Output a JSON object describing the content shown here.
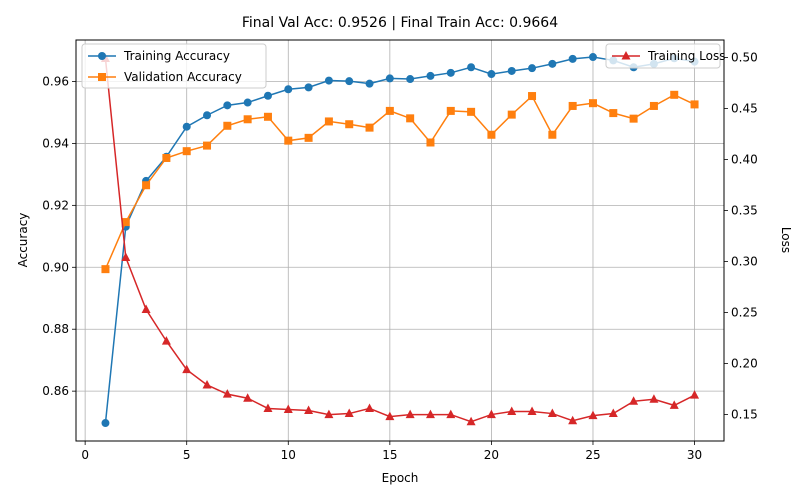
{
  "chart_data": {
    "type": "line",
    "title": "Final Val Acc: 0.9526 | Final Train Acc: 0.9664",
    "xlabel": "Epoch",
    "ylabel_left": "Accuracy",
    "ylabel_right": "Loss",
    "xlim": [
      -0.45,
      31.45
    ],
    "ylim_left": [
      0.8439,
      0.9734
    ],
    "ylim_right": [
      0.1241,
      0.5171
    ],
    "xticks": [
      0,
      5,
      10,
      15,
      20,
      25,
      30
    ],
    "yticks_left": [
      0.86,
      0.88,
      0.9,
      0.92,
      0.94,
      0.96
    ],
    "yticks_right": [
      0.15,
      0.2,
      0.25,
      0.3,
      0.35,
      0.4,
      0.45,
      0.5
    ],
    "grid": true,
    "x": [
      1,
      2,
      3,
      4,
      5,
      6,
      7,
      8,
      9,
      10,
      11,
      12,
      13,
      14,
      15,
      16,
      17,
      18,
      19,
      20,
      21,
      22,
      23,
      24,
      25,
      26,
      27,
      28,
      29,
      30
    ],
    "series": [
      {
        "name": "Training Accuracy",
        "axis": "left",
        "color": "#1f77b4",
        "marker": "circle",
        "values": [
          0.8497,
          0.9131,
          0.9279,
          0.9357,
          0.9454,
          0.9491,
          0.9523,
          0.9532,
          0.9554,
          0.9575,
          0.9581,
          0.9603,
          0.9601,
          0.9593,
          0.961,
          0.9608,
          0.9618,
          0.9628,
          0.9646,
          0.9624,
          0.9634,
          0.9643,
          0.9657,
          0.9673,
          0.9679,
          0.9668,
          0.9646,
          0.9657,
          0.9675,
          0.9664
        ]
      },
      {
        "name": "Validation Accuracy",
        "axis": "left",
        "color": "#ff7f0e",
        "marker": "square",
        "values": [
          0.8994,
          0.9146,
          0.9265,
          0.9353,
          0.9375,
          0.9393,
          0.9457,
          0.9478,
          0.9486,
          0.9409,
          0.9418,
          0.9471,
          0.9462,
          0.9451,
          0.9505,
          0.9481,
          0.9403,
          0.9505,
          0.9502,
          0.9428,
          0.9493,
          0.9553,
          0.9428,
          0.9521,
          0.953,
          0.9498,
          0.948,
          0.9521,
          0.9557,
          0.9526
        ]
      },
      {
        "name": "Training Loss",
        "axis": "right",
        "color": "#d62728",
        "marker": "triangle",
        "values": [
          0.499,
          0.304,
          0.253,
          0.222,
          0.194,
          0.179,
          0.17,
          0.166,
          0.156,
          0.155,
          0.154,
          0.15,
          0.151,
          0.156,
          0.148,
          0.15,
          0.15,
          0.15,
          0.143,
          0.15,
          0.153,
          0.153,
          0.151,
          0.144,
          0.149,
          0.151,
          0.163,
          0.165,
          0.159,
          0.169
        ]
      }
    ],
    "legends": [
      {
        "placement": "upper-left",
        "entries": [
          "Training Accuracy",
          "Validation Accuracy"
        ]
      },
      {
        "placement": "upper-right",
        "entries": [
          "Training Loss"
        ]
      }
    ]
  }
}
